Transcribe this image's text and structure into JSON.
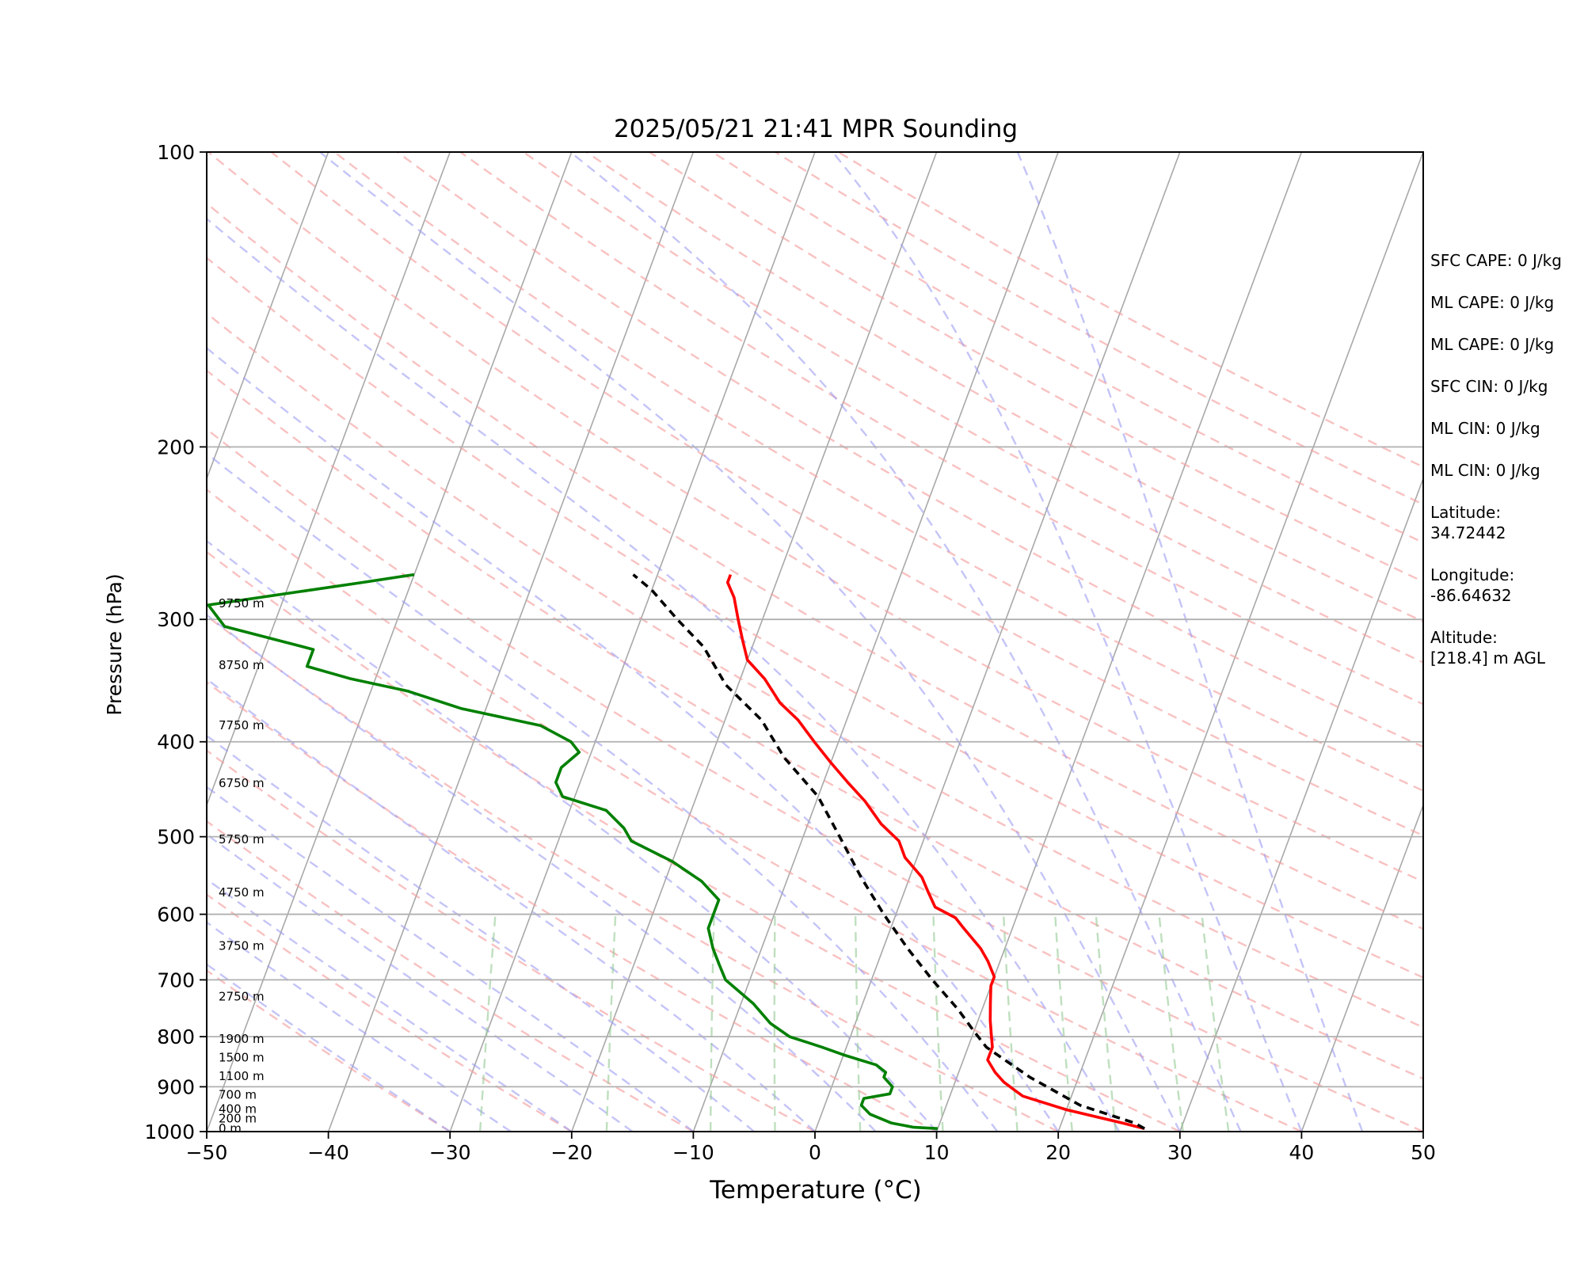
{
  "chart_data": {
    "type": "line",
    "subtype": "skew-T log-P sounding",
    "title": "2025/05/21 21:41 MPR Sounding",
    "xlabel": "Temperature (°C)",
    "ylabel": "Pressure (hPa)",
    "xlim": [
      -50,
      50
    ],
    "ylim": [
      1000,
      100
    ],
    "y_scale": "log",
    "x_ticks": [
      "−50",
      "−40",
      "−30",
      "−20",
      "−10",
      "0",
      "10",
      "20",
      "30",
      "40",
      "50"
    ],
    "y_ticks": [
      "100",
      "200",
      "300",
      "400",
      "500",
      "600",
      "700",
      "800",
      "900",
      "1000"
    ],
    "grid": true,
    "height_labels": [
      {
        "label": "0 m",
        "pressure": 993
      },
      {
        "label": "200 m",
        "pressure": 970
      },
      {
        "label": "400 m",
        "pressure": 948
      },
      {
        "label": "700 m",
        "pressure": 917
      },
      {
        "label": "1100 m",
        "pressure": 878
      },
      {
        "label": "1500 m",
        "pressure": 840
      },
      {
        "label": "1900 m",
        "pressure": 804
      },
      {
        "label": "2750 m",
        "pressure": 728
      },
      {
        "label": "3750 m",
        "pressure": 646
      },
      {
        "label": "4750 m",
        "pressure": 570
      },
      {
        "label": "5750 m",
        "pressure": 503
      },
      {
        "label": "6750 m",
        "pressure": 441
      },
      {
        "label": "7750 m",
        "pressure": 385
      },
      {
        "label": "8750 m",
        "pressure": 334
      },
      {
        "label": "9750 m",
        "pressure": 289
      }
    ],
    "series": [
      {
        "name": "Temperature",
        "color": "#ff0000",
        "points": [
          [
            27,
            993
          ],
          [
            25,
            980
          ],
          [
            20,
            950
          ],
          [
            16,
            920
          ],
          [
            15,
            905
          ],
          [
            14,
            890
          ],
          [
            13,
            870
          ],
          [
            12,
            845
          ],
          [
            12,
            820
          ],
          [
            11.5,
            795
          ],
          [
            11,
            770
          ],
          [
            10.5,
            740
          ],
          [
            10,
            710
          ],
          [
            10,
            695
          ],
          [
            9,
            670
          ],
          [
            8,
            650
          ],
          [
            6,
            620
          ],
          [
            5,
            605
          ],
          [
            3,
            590
          ],
          [
            2,
            570
          ],
          [
            1,
            550
          ],
          [
            -1,
            525
          ],
          [
            -2,
            505
          ],
          [
            -4,
            485
          ],
          [
            -6,
            460
          ],
          [
            -8,
            440
          ],
          [
            -10,
            420
          ],
          [
            -12,
            400
          ],
          [
            -14,
            380
          ],
          [
            -16,
            365
          ],
          [
            -18,
            345
          ],
          [
            -20,
            330
          ],
          [
            -21,
            315
          ],
          [
            -22,
            300
          ],
          [
            -23,
            285
          ],
          [
            -24,
            275
          ],
          [
            -24,
            270
          ]
        ]
      },
      {
        "name": "Dewpoint",
        "color": "#008000",
        "points": [
          [
            10,
            993
          ],
          [
            8,
            990
          ],
          [
            6,
            980
          ],
          [
            4,
            960
          ],
          [
            3,
            940
          ],
          [
            3,
            925
          ],
          [
            5,
            915
          ],
          [
            5,
            900
          ],
          [
            4,
            880
          ],
          [
            4,
            870
          ],
          [
            3,
            855
          ],
          [
            0,
            835
          ],
          [
            -2,
            820
          ],
          [
            -5,
            800
          ],
          [
            -7,
            775
          ],
          [
            -9,
            740
          ],
          [
            -12,
            700
          ],
          [
            -13,
            675
          ],
          [
            -14,
            650
          ],
          [
            -15,
            620
          ],
          [
            -15,
            600
          ],
          [
            -15,
            580
          ],
          [
            -17,
            555
          ],
          [
            -20,
            530
          ],
          [
            -24,
            505
          ],
          [
            -25,
            490
          ],
          [
            -27,
            470
          ],
          [
            -31,
            455
          ],
          [
            -32,
            440
          ],
          [
            -32,
            425
          ],
          [
            -31,
            410
          ],
          [
            -32,
            400
          ],
          [
            -35,
            385
          ],
          [
            -42,
            370
          ],
          [
            -47,
            355
          ],
          [
            -52,
            345
          ],
          [
            -56,
            335
          ],
          [
            -56,
            322
          ],
          [
            -64,
            305
          ],
          [
            -66,
            290
          ],
          [
            -54,
            275
          ],
          [
            -50,
            270
          ]
        ]
      },
      {
        "name": "Parcel path",
        "color": "#000000",
        "dashed": true,
        "points": [
          [
            27,
            993
          ],
          [
            26,
            980
          ],
          [
            21,
            940
          ],
          [
            16,
            880
          ],
          [
            11.5,
            820
          ],
          [
            10,
            790
          ],
          [
            8,
            750
          ],
          [
            5,
            700
          ],
          [
            2,
            650
          ],
          [
            -1,
            600
          ],
          [
            -4,
            550
          ],
          [
            -7,
            500
          ],
          [
            -10,
            455
          ],
          [
            -14,
            415
          ],
          [
            -17,
            380
          ],
          [
            -21,
            350
          ],
          [
            -24,
            320
          ],
          [
            -27,
            300
          ],
          [
            -30,
            280
          ],
          [
            -32,
            270
          ]
        ]
      }
    ]
  },
  "info_panel": [
    {
      "label": "SFC CAPE: 0 J/kg"
    },
    {
      "label": "ML CAPE: 0 J/kg"
    },
    {
      "label": "ML CAPE: 0 J/kg"
    },
    {
      "label": "SFC CIN: 0 J/kg"
    },
    {
      "label": "ML CIN: 0 J/kg"
    },
    {
      "label": "ML CIN: 0 J/kg"
    },
    {
      "label": "Latitude:",
      "value": "34.72442"
    },
    {
      "label": "Longitude:",
      "value": "-86.64632"
    },
    {
      "label": "Altitude:",
      "value": "[218.4] m AGL"
    }
  ]
}
